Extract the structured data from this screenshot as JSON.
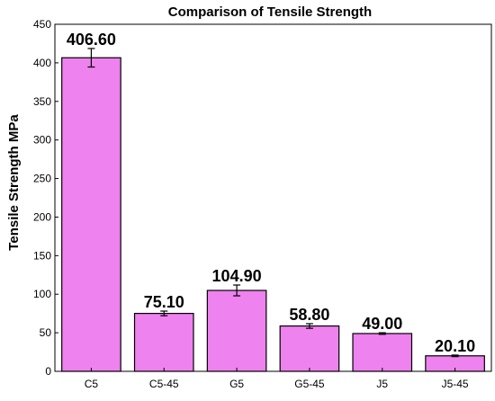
{
  "chart_data": {
    "type": "bar",
    "title": "Comparison of Tensile Strength",
    "xlabel": "",
    "ylabel": "Tensile Strength MPa",
    "categories": [
      "C5",
      "C5-45",
      "G5",
      "G5-45",
      "J5",
      "J5-45"
    ],
    "values": [
      406.6,
      75.1,
      104.9,
      58.8,
      49.0,
      20.1
    ],
    "data_labels": [
      "406.60",
      "75.10",
      "104.90",
      "58.80",
      "49.00",
      "20.10"
    ],
    "error": [
      12,
      3,
      7,
      3,
      1,
      1
    ],
    "ylim": [
      0,
      450
    ],
    "yticks": [
      0,
      50,
      100,
      150,
      200,
      250,
      300,
      350,
      400,
      450
    ],
    "grid": false,
    "colors": {
      "bar": "#ee82ee",
      "bar_edge": "#000000",
      "error_bar": "#000000"
    }
  }
}
